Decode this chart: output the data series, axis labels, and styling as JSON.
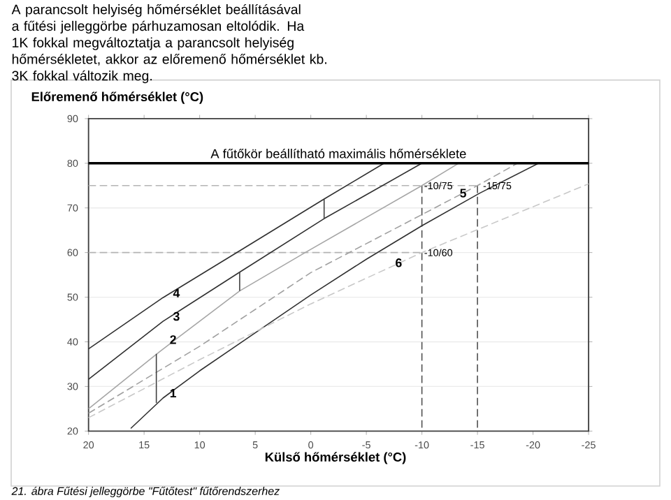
{
  "chart_data": {
    "type": "line",
    "xlabel": "Külső hőmérséklet (°C)",
    "ylabel": "Előremenő hőmérséklet (°C)",
    "xlim": [
      20,
      -25
    ],
    "xticks": [
      20,
      15,
      10,
      5,
      0,
      -5,
      -10,
      -15,
      -20,
      -25
    ],
    "ylim": [
      20,
      90
    ],
    "yticks": [
      20,
      30,
      40,
      50,
      60,
      70,
      80,
      90
    ],
    "grid": "y",
    "ref_lines": [
      {
        "axis": "y",
        "value": 80,
        "label": "A fűtőkör beállítható maximális hőmérséklete",
        "color": "#000000"
      }
    ],
    "series": [
      {
        "color": "#b4b4b4",
        "line_style": "dashed",
        "x": [
          20,
          -15
        ],
        "values": [
          75,
          75
        ]
      },
      {
        "color": "#b4b4b4",
        "line_style": "dashed",
        "x": [
          20,
          -10
        ],
        "values": [
          60,
          60
        ]
      },
      {
        "color": "#505050",
        "line_style": "dashed",
        "x": [
          -10,
          -10
        ],
        "values": [
          75,
          20
        ]
      },
      {
        "color": "#505050",
        "line_style": "dashed",
        "x": [
          -15,
          -15
        ],
        "values": [
          75,
          20
        ]
      },
      {
        "color": "#303030",
        "x": [
          16.2,
          13.3,
          10,
          5,
          0,
          -5,
          -10,
          -15.2,
          -20.5
        ],
        "values": [
          20.6,
          27.4,
          33.5,
          42,
          50.5,
          58.5,
          66,
          73.3,
          80
        ]
      },
      {
        "color": "#a6a6a6",
        "x": [
          20,
          13.5,
          6.4,
          0.5,
          -10,
          -13.3
        ],
        "values": [
          25,
          38,
          51.4,
          60,
          75,
          80
        ]
      },
      {
        "color": "#303030",
        "x": [
          20,
          13.3,
          6.4,
          -1.2,
          -10
        ],
        "values": [
          31.6,
          44.6,
          55.6,
          67.6,
          80
        ]
      },
      {
        "color": "#303030",
        "x": [
          20,
          13.3,
          6,
          -1.2,
          -6.6
        ],
        "values": [
          38.4,
          49.9,
          61,
          72,
          80
        ]
      },
      {
        "color": "#a0a0a0",
        "line_style": "dashed",
        "x": [
          20,
          10,
          0,
          -10,
          -15,
          -18.6
        ],
        "values": [
          24,
          39,
          55.5,
          68.5,
          75,
          80
        ]
      },
      {
        "color": "#c8c8c8",
        "line_style": "dashed",
        "x": [
          20,
          10,
          0,
          -10,
          -25
        ],
        "values": [
          23,
          36,
          48.5,
          60,
          75.4
        ]
      },
      {
        "color": "#404040",
        "x": [
          -1.2,
          -1.2
        ],
        "values": [
          67.6,
          72
        ]
      },
      {
        "color": "#404040",
        "x": [
          6.4,
          6.4
        ],
        "values": [
          51.4,
          55.6
        ]
      },
      {
        "color": "#404040",
        "x": [
          13.9,
          13.9
        ],
        "values": [
          26.3,
          37.3
        ]
      }
    ],
    "annotations": [
      "A parancsolt helyiség hőmérséklet beállításával a fűtési jelleggörbe párhuzamosan eltolódik. Ha 1K fokkal megváltoztatja a parancsolt helyiség hőmérsékletet, akkor az előremenő hőmérséklet kb. 3K fokkal változik meg.",
      "*21. ábra Fűtési jelleggörbe \"Fűtőtest\" fűtőrendszerhez*",
      {
        "text": "-10/75",
        "x": -10,
        "y": 75
      },
      {
        "text": "-15/75",
        "x": -15.3,
        "y": 75
      },
      {
        "text": "-10/60",
        "x": -10,
        "y": 60
      },
      {
        "text": "1",
        "x": 12.9,
        "y": 28.5
      },
      {
        "text": "2",
        "x": 12.9,
        "y": 40.5
      },
      {
        "text": "3",
        "x": 12.6,
        "y": 45.7
      },
      {
        "text": "4",
        "x": 12.6,
        "y": 50.9
      },
      {
        "text": "5",
        "x": -13.2,
        "y": 73.3
      },
      {
        "text": "6",
        "x": -7.4,
        "y": 57.7
      }
    ]
  }
}
